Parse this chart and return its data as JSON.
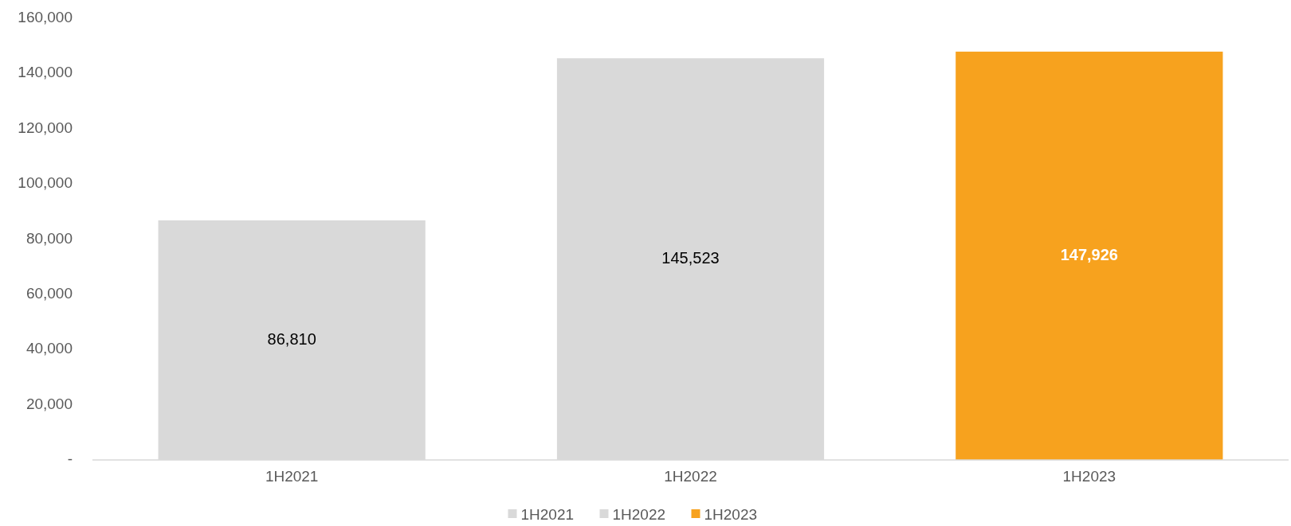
{
  "chart_data": {
    "type": "bar",
    "categories": [
      "1H2021",
      "1H2022",
      "1H2023"
    ],
    "series": [
      {
        "name": "1H2021",
        "color": "#d9d9d9",
        "values": [
          86810,
          null,
          null
        ],
        "value_labels": [
          "86,810",
          null,
          null
        ]
      },
      {
        "name": "1H2022",
        "color": "#d9d9d9",
        "values": [
          null,
          145523,
          null
        ],
        "value_labels": [
          null,
          "145,523",
          null
        ]
      },
      {
        "name": "1H2023",
        "color": "#f7a21e",
        "values": [
          null,
          null,
          147926
        ],
        "value_labels": [
          null,
          null,
          "147,926"
        ]
      }
    ],
    "ylim": [
      0,
      160000
    ],
    "yticks": [
      {
        "value": 0,
        "label": "-"
      },
      {
        "value": 20000,
        "label": "20,000"
      },
      {
        "value": 40000,
        "label": "40,000"
      },
      {
        "value": 60000,
        "label": "60,000"
      },
      {
        "value": 80000,
        "label": "80,000"
      },
      {
        "value": 100000,
        "label": "100,000"
      },
      {
        "value": 120000,
        "label": "120,000"
      },
      {
        "value": 140000,
        "label": "140,000"
      },
      {
        "value": 160000,
        "label": "160,000"
      }
    ],
    "legend": "bottom"
  }
}
